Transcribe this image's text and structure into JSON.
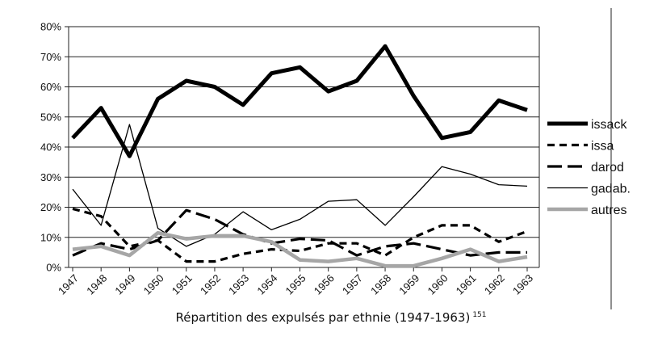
{
  "caption": {
    "text": "Répartition des expulsés par ethnie (1947-1963)",
    "note": "151"
  },
  "chart_data": {
    "type": "line",
    "categories": [
      "1947",
      "1948",
      "1949",
      "1950",
      "1951",
      "1952",
      "1953",
      "1954",
      "1955",
      "1956",
      "1957",
      "1958",
      "1959",
      "1960",
      "1961",
      "1962",
      "1963"
    ],
    "y_ticks": [
      "0%",
      "10%",
      "20%",
      "30%",
      "40%",
      "50%",
      "60%",
      "70%",
      "80%"
    ],
    "ylim": [
      0,
      80
    ],
    "grid": "horizontal",
    "legend_position": "right",
    "series": [
      {
        "name": "issack",
        "style": "thick-solid",
        "color": "#000000",
        "values": [
          43,
          53,
          37,
          56,
          62,
          60,
          54,
          64.5,
          66.5,
          58.5,
          62,
          73.5,
          57,
          43,
          45,
          55.5,
          52.3
        ]
      },
      {
        "name": "issa",
        "style": "short-dash",
        "color": "#000000",
        "values": [
          19.5,
          17,
          7,
          9,
          2,
          2,
          4.5,
          6,
          5.5,
          8,
          8,
          4,
          10,
          14,
          14,
          8.5,
          12
        ]
      },
      {
        "name": "darod",
        "style": "long-dash",
        "color": "#000000",
        "values": [
          4,
          8,
          6,
          9,
          19,
          16,
          11,
          8,
          9.5,
          9,
          4,
          7,
          8,
          6,
          4,
          5,
          5
        ]
      },
      {
        "name": "gadab.",
        "style": "thin-solid",
        "color": "#000000",
        "values": [
          26,
          14,
          47.5,
          13,
          7,
          11,
          18.5,
          12.5,
          16,
          22,
          22.5,
          14,
          23.5,
          33.5,
          31,
          27.5,
          27
        ]
      },
      {
        "name": "autres",
        "style": "gray-thick",
        "color": "#a6a6a6",
        "values": [
          6,
          7,
          4,
          11.5,
          9.5,
          10.5,
          10.5,
          8.5,
          2.5,
          2,
          3,
          0.5,
          0.5,
          3,
          6,
          2,
          3.5
        ]
      }
    ]
  }
}
